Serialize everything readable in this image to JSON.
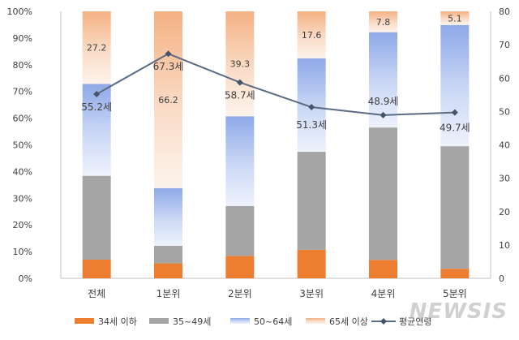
{
  "chart_data": {
    "type": "bar",
    "stacked": true,
    "categories": [
      "전체",
      "1분위",
      "2분위",
      "3분위",
      "4분위",
      "5분위"
    ],
    "series": [
      {
        "name": "34세 이하",
        "color": "#ED7D31",
        "values": [
          7.0,
          5.6,
          8.4,
          10.7,
          6.9,
          3.6
        ]
      },
      {
        "name": "35~49세",
        "color": "#A5A5A5",
        "values": [
          31.4,
          6.6,
          18.7,
          36.7,
          49.6,
          45.9
        ]
      },
      {
        "name": "50~64세",
        "color": "#8EA9E8",
        "values": [
          34.4,
          21.6,
          33.6,
          35.0,
          35.7,
          45.4
        ]
      },
      {
        "name": "65세 이상",
        "color": "#F4B183",
        "values": [
          27.2,
          66.2,
          39.3,
          17.6,
          7.8,
          5.1
        ]
      }
    ],
    "bar_labels": {
      "series": "65세 이상",
      "values": [
        "27.2",
        "66.2",
        "39.3",
        "17.6",
        "7.8",
        "5.1"
      ]
    },
    "line": {
      "name": "평균연령",
      "color": "#5B6B82",
      "values": [
        55.2,
        67.3,
        58.7,
        51.3,
        48.9,
        49.7
      ],
      "labels": [
        "55.2세",
        "67.3세",
        "58.7세",
        "51.3세",
        "48.9세",
        "49.7세"
      ]
    },
    "y_left": {
      "min": 0,
      "max": 100,
      "ticks": [
        "0%",
        "10%",
        "20%",
        "30%",
        "40%",
        "50%",
        "60%",
        "70%",
        "80%",
        "90%",
        "100%"
      ]
    },
    "y_right": {
      "min": 0,
      "max": 80,
      "ticks": [
        "0",
        "10",
        "20",
        "30",
        "40",
        "50",
        "60",
        "70",
        "80"
      ]
    },
    "legend_position": "bottom",
    "grid": false
  },
  "watermark": "NEWSIS"
}
